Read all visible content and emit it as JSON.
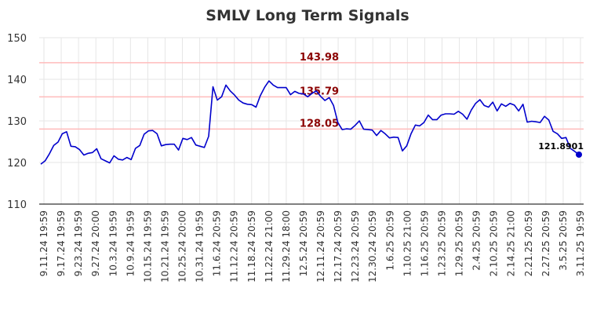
{
  "chart_data": {
    "type": "line",
    "title": "SMLV Long Term Signals",
    "ylim": [
      110,
      150
    ],
    "yticks": [
      110,
      120,
      130,
      140,
      150
    ],
    "grid": true,
    "line_color": "#0000cc",
    "ref_line_color": "#ffbbbb",
    "ref_label_color": "#8b0000",
    "reference_lines": [
      {
        "value": 143.98,
        "label": "143.98"
      },
      {
        "value": 135.79,
        "label": "135.79"
      },
      {
        "value": 128.05,
        "label": "128.05"
      }
    ],
    "xtick_labels": [
      "9.11.24 19:59",
      "9.17.24 19:59",
      "9.23.24 19:59",
      "9.27.24 20:00",
      "10.3.24 19:59",
      "10.9.24 19:59",
      "10.15.24 19:59",
      "10.21.24 19:59",
      "10.25.24 20:00",
      "10.31.24 19:59",
      "11.6.24 20:59",
      "11.12.24 20:59",
      "11.18.24 20:59",
      "11.22.24 21:00",
      "11.29.24 18:00",
      "12.5.24 20:59",
      "12.11.24 20:59",
      "12.17.24 20:59",
      "12.23.24 20:59",
      "12.30.24 20:59",
      "1.6.25 20:59",
      "1.10.25 21:00",
      "1.16.25 20:59",
      "1.23.25 20:59",
      "1.29.25 20:59",
      "2.4.25 20:59",
      "2.10.25 20:59",
      "2.14.25 21:00",
      "2.21.25 20:59",
      "2.27.25 20:59",
      "3.5.25 20:59",
      "3.11.25 19:59"
    ],
    "values": [
      119.6,
      120.4,
      122.1,
      124.1,
      124.9,
      126.9,
      127.4,
      123.9,
      123.8,
      123.1,
      121.8,
      122.2,
      122.4,
      123.3,
      120.9,
      120.4,
      119.9,
      121.6,
      120.8,
      120.6,
      121.2,
      120.7,
      123.4,
      124.1,
      126.8,
      127.6,
      127.7,
      126.9,
      124.0,
      124.3,
      124.4,
      124.4,
      123.0,
      125.8,
      125.5,
      126.0,
      124.2,
      123.9,
      123.6,
      126.3,
      138.2,
      135.0,
      135.8,
      138.6,
      137.2,
      136.2,
      135.0,
      134.3,
      134.0,
      133.9,
      133.3,
      136.1,
      138.1,
      139.6,
      138.6,
      138.0,
      138.0,
      138.0,
      136.3,
      137.1,
      136.6,
      136.5,
      135.8,
      136.6,
      137.2,
      135.9,
      134.9,
      135.6,
      133.7,
      129.6,
      127.9,
      128.1,
      128.0,
      128.9,
      130.0,
      128.0,
      127.9,
      127.8,
      126.5,
      127.7,
      126.9,
      125.9,
      126.1,
      126.0,
      122.8,
      124.0,
      126.9,
      129.0,
      128.8,
      129.6,
      131.4,
      130.3,
      130.3,
      131.4,
      131.7,
      131.7,
      131.6,
      132.3,
      131.6,
      130.4,
      132.6,
      134.2,
      135.1,
      133.7,
      133.3,
      134.5,
      132.4,
      134.1,
      133.5,
      134.2,
      133.8,
      132.4,
      134.0,
      129.7,
      129.9,
      129.8,
      129.6,
      131.1,
      130.2,
      127.5,
      126.9,
      125.8,
      126.0,
      123.4,
      122.7,
      121.89
    ],
    "last_label": "121.8901"
  }
}
